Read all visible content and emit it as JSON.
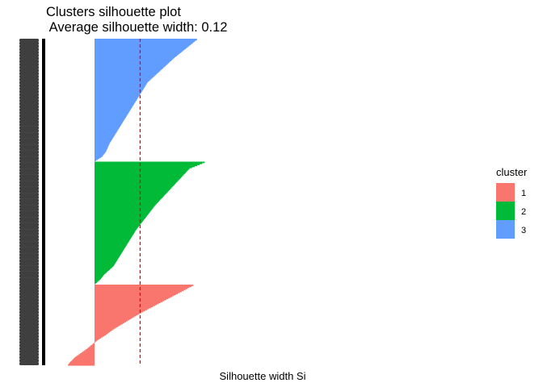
{
  "chart_data": {
    "type": "bar",
    "orientation": "horizontal",
    "title": "Clusters silhouette plot",
    "subtitle": " Average silhouette width: 0.12",
    "xlabel": "Silhouette width Si",
    "ylabel": "",
    "xlim": [
      -0.07,
      1.0
    ],
    "grid": false,
    "legend": {
      "title": "cluster",
      "position": "right"
    },
    "average_silhouette_width": 0.12,
    "reference_line": {
      "value": 0.12,
      "style": "dashed",
      "color": "#FF0000"
    },
    "clusters": [
      {
        "name": "3",
        "color": "#619CFF",
        "n": 122,
        "max": 0.27,
        "min": 0.0,
        "profile": [
          [
            0,
            0.27
          ],
          [
            0.05,
            0.25
          ],
          [
            0.15,
            0.21
          ],
          [
            0.25,
            0.175
          ],
          [
            0.35,
            0.14
          ],
          [
            0.45,
            0.12
          ],
          [
            0.55,
            0.1
          ],
          [
            0.65,
            0.08
          ],
          [
            0.75,
            0.06
          ],
          [
            0.85,
            0.04
          ],
          [
            0.92,
            0.03
          ],
          [
            0.96,
            0.02
          ],
          [
            1,
            0.0
          ]
        ]
      },
      {
        "name": "2",
        "color": "#00BA38",
        "n": 122,
        "max": 0.29,
        "min": 0.0,
        "profile": [
          [
            0,
            0.29
          ],
          [
            0.05,
            0.25
          ],
          [
            0.15,
            0.22
          ],
          [
            0.25,
            0.19
          ],
          [
            0.35,
            0.16
          ],
          [
            0.45,
            0.135
          ],
          [
            0.55,
            0.11
          ],
          [
            0.65,
            0.09
          ],
          [
            0.75,
            0.07
          ],
          [
            0.85,
            0.05
          ],
          [
            0.92,
            0.025
          ],
          [
            0.96,
            0.015
          ],
          [
            1,
            0.0
          ]
        ]
      },
      {
        "name": "1",
        "color": "#F8766D",
        "n": 80,
        "max": 0.26,
        "min": -0.07,
        "profile": [
          [
            0,
            0.26
          ],
          [
            0.05,
            0.24
          ],
          [
            0.15,
            0.2
          ],
          [
            0.25,
            0.16
          ],
          [
            0.35,
            0.12
          ],
          [
            0.45,
            0.085
          ],
          [
            0.55,
            0.05
          ],
          [
            0.62,
            0.03
          ],
          [
            0.68,
            0.01
          ],
          [
            0.72,
            0.0
          ],
          [
            0.8,
            -0.02
          ],
          [
            0.9,
            -0.05
          ],
          [
            0.97,
            -0.065
          ],
          [
            1,
            -0.07
          ]
        ]
      }
    ]
  }
}
